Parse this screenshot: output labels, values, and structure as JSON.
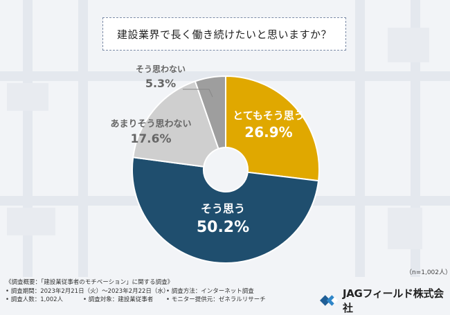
{
  "question": "建設業界で長く働き続けたいと思いますか？",
  "chart_data": {
    "type": "pie",
    "categories": [
      "とてもそう思う",
      "そう思う",
      "あまりそう思わない",
      "そう思わない"
    ],
    "values": [
      26.9,
      50.2,
      17.6,
      5.3
    ],
    "value_labels": [
      "26.9%",
      "50.2%",
      "17.6%",
      "5.3%"
    ],
    "colors": [
      "#e0a800",
      "#1f4e6e",
      "#cfcfcf",
      "#9e9e9e"
    ],
    "donut": true
  },
  "sample_size": "（n=1,002人）",
  "footer": {
    "title": "《調査概要：「建設業従事者のモチベーション」に関する調査》",
    "period": "• 調査期間：2023年2月21日（火）～2023年2月22日（水）",
    "method": "• 調査方法：インターネット調査",
    "count": "• 調査人数：1,002人",
    "target": "• 調査対象：建設業従事者",
    "provider": "• モニター提供元：ゼネラルリサーチ"
  },
  "brand": {
    "name": "JAGフィールド株式会社",
    "logo_icon": "jag-logo-icon"
  }
}
